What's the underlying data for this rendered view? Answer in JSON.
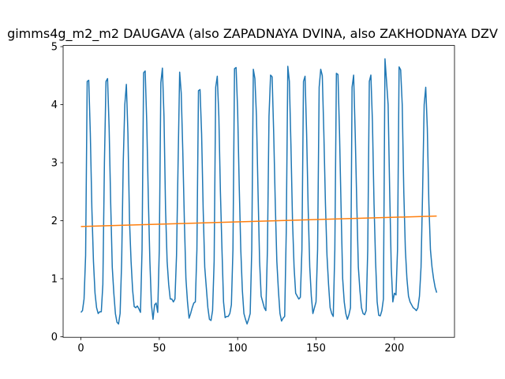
{
  "chart_data": {
    "type": "line",
    "title": "gimms4g_m2_m2 DAUGAVA (also ZAPADNAYA DVINA, also ZAKHODNAYA DZV",
    "xlim": [
      -11.35,
      238.35
    ],
    "xticks": [
      0,
      50,
      100,
      150,
      200
    ],
    "ylim": [
      -0.01,
      5.02
    ],
    "yticks": [
      0,
      1,
      2,
      3,
      4,
      5
    ],
    "series": [
      {
        "color": "#1f77b4",
        "x": [
          0,
          1,
          2,
          3,
          4,
          5,
          6,
          7,
          8,
          9,
          10,
          11,
          12,
          13,
          14,
          15,
          16,
          17,
          18,
          19,
          20,
          21,
          22,
          23,
          24,
          25,
          26,
          27,
          28,
          29,
          30,
          31,
          32,
          33,
          34,
          35,
          36,
          37,
          38,
          39,
          40,
          41,
          42,
          43,
          44,
          45,
          46,
          47,
          48,
          49,
          50,
          51,
          52,
          53,
          54,
          55,
          56,
          57,
          58,
          59,
          60,
          61,
          62,
          63,
          64,
          65,
          66,
          67,
          68,
          69,
          70,
          71,
          72,
          73,
          74,
          75,
          76,
          77,
          78,
          79,
          80,
          81,
          82,
          83,
          84,
          85,
          86,
          87,
          88,
          89,
          90,
          91,
          92,
          93,
          94,
          95,
          96,
          97,
          98,
          99,
          100,
          101,
          102,
          103,
          104,
          105,
          106,
          107,
          108,
          109,
          110,
          111,
          112,
          113,
          114,
          115,
          116,
          117,
          118,
          119,
          120,
          121,
          122,
          123,
          124,
          125,
          126,
          127,
          128,
          129,
          130,
          131,
          132,
          133,
          134,
          135,
          136,
          137,
          138,
          139,
          140,
          141,
          142,
          143,
          144,
          145,
          146,
          147,
          148,
          149,
          150,
          151,
          152,
          153,
          154,
          155,
          156,
          157,
          158,
          159,
          160,
          161,
          162,
          163,
          164,
          165,
          166,
          167,
          168,
          169,
          170,
          171,
          172,
          173,
          174,
          175,
          176,
          177,
          178,
          179,
          180,
          181,
          182,
          183,
          184,
          185,
          186,
          187,
          188,
          189,
          190,
          191,
          192,
          193,
          194,
          195,
          196,
          197,
          198,
          199,
          200,
          201,
          202,
          203,
          204,
          205,
          206,
          207,
          208,
          209,
          210,
          211,
          212,
          213,
          214,
          215,
          216,
          217,
          218,
          219,
          220,
          221,
          222,
          223,
          224,
          225,
          226,
          227
        ],
        "values": [
          0.42,
          0.45,
          0.65,
          1.4,
          4.4,
          4.42,
          3.5,
          2.2,
          1.3,
          0.75,
          0.5,
          0.4,
          0.43,
          0.43,
          0.9,
          3.0,
          4.4,
          4.45,
          3.6,
          2.3,
          1.2,
          0.75,
          0.4,
          0.25,
          0.22,
          0.4,
          1.3,
          3.0,
          4.0,
          4.35,
          3.5,
          2.0,
          1.3,
          0.8,
          0.52,
          0.5,
          0.53,
          0.48,
          0.42,
          1.5,
          4.55,
          4.58,
          3.7,
          2.4,
          1.3,
          0.55,
          0.3,
          0.55,
          0.58,
          0.42,
          1.5,
          4.38,
          4.63,
          3.8,
          2.2,
          1.3,
          0.9,
          0.65,
          0.65,
          0.6,
          0.65,
          1.4,
          3.0,
          4.56,
          4.2,
          3.2,
          2.0,
          1.0,
          0.6,
          0.32,
          0.4,
          0.5,
          0.58,
          0.6,
          1.5,
          4.24,
          4.26,
          3.5,
          2.2,
          1.2,
          0.85,
          0.5,
          0.3,
          0.28,
          0.45,
          1.3,
          4.3,
          4.49,
          3.8,
          2.5,
          1.5,
          0.6,
          0.33,
          0.35,
          0.35,
          0.4,
          0.55,
          1.5,
          4.62,
          4.64,
          3.9,
          2.6,
          1.5,
          0.8,
          0.4,
          0.3,
          0.22,
          0.3,
          0.4,
          1.5,
          4.61,
          4.45,
          3.8,
          2.5,
          1.3,
          0.7,
          0.6,
          0.5,
          0.45,
          1.5,
          3.8,
          4.51,
          4.48,
          3.5,
          2.3,
          1.3,
          0.8,
          0.4,
          0.27,
          0.32,
          0.35,
          1.8,
          4.66,
          4.4,
          3.3,
          2.0,
          1.2,
          0.75,
          0.7,
          0.65,
          0.68,
          1.5,
          4.4,
          4.49,
          3.5,
          2.2,
          1.2,
          0.7,
          0.4,
          0.5,
          0.6,
          1.5,
          4.3,
          4.61,
          4.5,
          3.5,
          2.3,
          1.4,
          0.9,
          0.5,
          0.4,
          0.35,
          1.5,
          4.54,
          4.52,
          3.5,
          2.2,
          1.0,
          0.6,
          0.4,
          0.3,
          0.38,
          0.5,
          4.3,
          4.51,
          3.5,
          2.3,
          1.2,
          0.8,
          0.5,
          0.4,
          0.38,
          0.45,
          1.5,
          4.4,
          4.51,
          3.7,
          2.3,
          1.3,
          0.6,
          0.37,
          0.36,
          0.45,
          0.65,
          4.79,
          4.4,
          4.0,
          2.5,
          1.2,
          0.6,
          0.75,
          0.72,
          1.5,
          4.65,
          4.6,
          4.0,
          2.5,
          1.5,
          1.0,
          0.7,
          0.6,
          0.55,
          0.5,
          0.48,
          0.45,
          0.5,
          0.7,
          1.2,
          2.5,
          4.0,
          4.3,
          3.6,
          2.3,
          1.5,
          1.2,
          1.0,
          0.85,
          0.76
        ]
      },
      {
        "color": "#ff7f0e",
        "x": [
          0,
          227
        ],
        "values": [
          1.9,
          2.08
        ]
      }
    ]
  }
}
